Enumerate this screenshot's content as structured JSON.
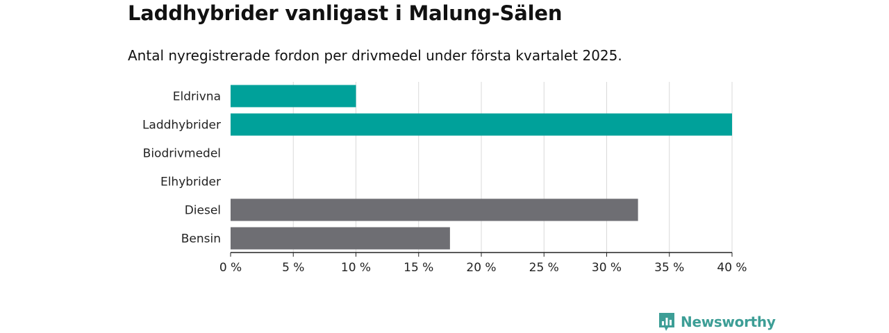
{
  "title": "Laddhybrider vanligast i Malung-Sälen",
  "subtitle": "Antal nyregistrerade fordon per drivmedel under första kvartalet 2025.",
  "chart_data": {
    "type": "bar",
    "orientation": "horizontal",
    "categories": [
      "Eldrivna",
      "Laddhybrider",
      "Biodrivmedel",
      "Elhybrider",
      "Diesel",
      "Bensin"
    ],
    "values": [
      10,
      40,
      0,
      0,
      32.5,
      17.5
    ],
    "bar_colors": [
      "#00a19a",
      "#00a19a",
      "#00a19a",
      "#00a19a",
      "#6e6e73",
      "#6e6e73"
    ],
    "xlim": [
      0,
      40
    ],
    "xticks": [
      0,
      5,
      10,
      15,
      20,
      25,
      30,
      35,
      40
    ],
    "xtick_labels": [
      "0 %",
      "5 %",
      "10 %",
      "15 %",
      "20 %",
      "25 %",
      "30 %",
      "35 %",
      "40 %"
    ],
    "grid": "vertical",
    "legend": "none"
  },
  "brand": {
    "name": "Newsworthy",
    "icon": "newsworthy-logo-icon",
    "color": "#3d9e96"
  },
  "colors": {
    "grid": "#d9d9d9",
    "axis": "#222222"
  }
}
